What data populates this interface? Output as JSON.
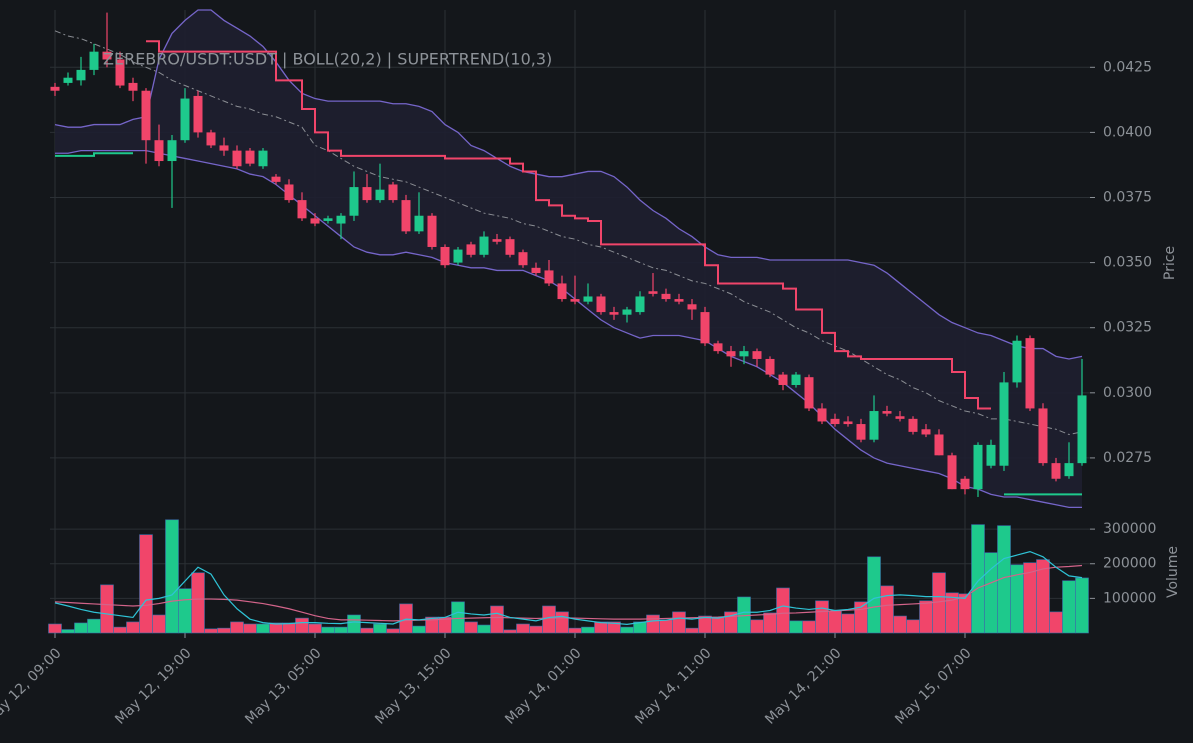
{
  "chart_data": {
    "type": "candlestick",
    "title": "ZEREBRO/USDT:USDT | BOLL(20,2) | SUPERTREND(10,3)",
    "ylabel": "Price",
    "up_color": "#1ec98c",
    "down_color": "#f1456a",
    "grid": true,
    "categories": [
      "May 12, 09:00",
      null,
      null,
      null,
      null,
      null,
      null,
      null,
      null,
      null,
      "May 12, 19:00",
      null,
      null,
      null,
      null,
      null,
      null,
      null,
      null,
      null,
      "May 13, 05:00",
      null,
      null,
      null,
      null,
      null,
      null,
      null,
      null,
      null,
      "May 13, 15:00",
      null,
      null,
      null,
      null,
      null,
      null,
      null,
      null,
      null,
      "May 14, 01:00",
      null,
      null,
      null,
      null,
      null,
      null,
      null,
      null,
      null,
      "May 14, 11:00",
      null,
      null,
      null,
      null,
      null,
      null,
      null,
      null,
      null,
      "May 14, 21:00",
      null,
      null,
      null,
      null,
      null,
      null,
      null,
      null,
      null,
      "May 15, 07:00",
      null,
      null,
      null,
      null,
      null,
      null,
      null,
      null,
      null
    ],
    "open": [
      0.04175,
      0.0419,
      0.042,
      0.0424,
      0.0431,
      0.0428,
      0.0419,
      0.0416,
      0.0397,
      0.0389,
      0.0397,
      0.0414,
      0.04,
      0.0395,
      0.0393,
      0.0393,
      0.0387,
      0.0383,
      0.038,
      0.0374,
      0.0367,
      0.0366,
      0.0365,
      0.0368,
      0.0379,
      0.0374,
      0.038,
      0.0374,
      0.0362,
      0.0368,
      0.0356,
      0.035,
      0.0357,
      0.0353,
      0.0359,
      0.0359,
      0.0354,
      0.0348,
      0.0347,
      0.0342,
      0.0336,
      0.0335,
      0.0337,
      0.0331,
      0.033,
      0.0331,
      0.0339,
      0.0338,
      0.0336,
      0.0334,
      0.0331,
      0.0319,
      0.0316,
      0.0314,
      0.0316,
      0.0313,
      0.0307,
      0.0303,
      0.0306,
      0.0294,
      0.029,
      0.0289,
      0.0288,
      0.0282,
      0.0293,
      0.0291,
      0.029,
      0.0286,
      0.0284,
      0.0276,
      0.0267,
      0.0263,
      0.0272,
      0.0272,
      0.0304,
      0.0321,
      0.0294,
      0.0273,
      0.0268,
      0.0273
    ],
    "high": [
      0.0419,
      0.0423,
      0.0429,
      0.0434,
      0.0446,
      0.0431,
      0.0421,
      0.0417,
      0.0403,
      0.0399,
      0.0417,
      0.0416,
      0.0401,
      0.0398,
      0.0395,
      0.0394,
      0.0394,
      0.0384,
      0.0382,
      0.0377,
      0.0369,
      0.0368,
      0.0369,
      0.0385,
      0.0384,
      0.0388,
      0.0381,
      0.0376,
      0.0377,
      0.0369,
      0.0357,
      0.0356,
      0.0358,
      0.0362,
      0.0361,
      0.036,
      0.0355,
      0.035,
      0.0351,
      0.0345,
      0.0345,
      0.0342,
      0.0338,
      0.0333,
      0.0333,
      0.0339,
      0.0346,
      0.034,
      0.0338,
      0.0336,
      0.0333,
      0.032,
      0.0318,
      0.0318,
      0.0317,
      0.0314,
      0.0308,
      0.0308,
      0.0307,
      0.0296,
      0.0292,
      0.0291,
      0.029,
      0.0299,
      0.0295,
      0.0293,
      0.0291,
      0.0288,
      0.0286,
      0.0277,
      0.0268,
      0.0281,
      0.0282,
      0.0308,
      0.0322,
      0.0322,
      0.0296,
      0.0275,
      0.0281,
      0.0313
    ],
    "low": [
      0.0414,
      0.0418,
      0.0418,
      0.0422,
      0.0425,
      0.0417,
      0.0412,
      0.0388,
      0.0387,
      0.0371,
      0.0396,
      0.0398,
      0.0394,
      0.0391,
      0.0386,
      0.0387,
      0.0386,
      0.038,
      0.0373,
      0.0366,
      0.0364,
      0.0365,
      0.0359,
      0.0366,
      0.0373,
      0.0373,
      0.0373,
      0.0361,
      0.0361,
      0.0355,
      0.0348,
      0.0349,
      0.0352,
      0.0352,
      0.0357,
      0.0352,
      0.0348,
      0.0345,
      0.0341,
      0.0335,
      0.0334,
      0.0334,
      0.033,
      0.0328,
      0.0327,
      0.033,
      0.0337,
      0.0335,
      0.0334,
      0.0328,
      0.0318,
      0.0315,
      0.031,
      0.0311,
      0.031,
      0.0306,
      0.0301,
      0.0302,
      0.0293,
      0.0288,
      0.0287,
      0.0287,
      0.0281,
      0.0281,
      0.0291,
      0.0289,
      0.0284,
      0.0283,
      0.0276,
      0.0263,
      0.0261,
      0.026,
      0.0271,
      0.027,
      0.0302,
      0.0293,
      0.0272,
      0.0266,
      0.0267,
      0.0272
    ],
    "close": [
      0.0416,
      0.0421,
      0.0424,
      0.0431,
      0.0428,
      0.0418,
      0.0416,
      0.0397,
      0.0389,
      0.0397,
      0.0413,
      0.04,
      0.0395,
      0.0393,
      0.0387,
      0.0388,
      0.0393,
      0.0381,
      0.0374,
      0.0367,
      0.0365,
      0.0367,
      0.0368,
      0.0379,
      0.0374,
      0.0378,
      0.0374,
      0.0362,
      0.0368,
      0.0356,
      0.0349,
      0.0355,
      0.0353,
      0.036,
      0.0358,
      0.0353,
      0.0349,
      0.0346,
      0.0342,
      0.0336,
      0.0335,
      0.0337,
      0.0331,
      0.033,
      0.0332,
      0.0337,
      0.0338,
      0.0336,
      0.0335,
      0.0332,
      0.0319,
      0.0316,
      0.0314,
      0.0316,
      0.0313,
      0.0307,
      0.0303,
      0.0307,
      0.0294,
      0.0289,
      0.0288,
      0.0288,
      0.0282,
      0.0293,
      0.0292,
      0.029,
      0.0285,
      0.0284,
      0.0276,
      0.0263,
      0.0263,
      0.028,
      0.028,
      0.0304,
      0.032,
      0.0294,
      0.0273,
      0.0267,
      0.0273,
      0.0299
    ],
    "ylim": [
      0.0255,
      0.0447
    ],
    "yticks": [
      0.0275,
      {
        "value": 0.03,
        "label": "0.0300"
      },
      0.0325,
      {
        "value": 0.035,
        "label": "0.0350"
      },
      0.0375,
      {
        "value": 0.04,
        "label": "0.0400"
      },
      0.0425
    ],
    "bollinger": {
      "color": "#7565c9",
      "mid_color": "#8a8d93",
      "upper": [
        0.0403,
        0.0402,
        0.0402,
        0.0403,
        0.0403,
        0.0403,
        0.0405,
        0.0406,
        0.0428,
        0.0438,
        0.0443,
        0.0447,
        0.0447,
        0.0443,
        0.044,
        0.0437,
        0.0433,
        0.0427,
        0.042,
        0.0415,
        0.0413,
        0.0412,
        0.0412,
        0.0412,
        0.0412,
        0.0412,
        0.0411,
        0.0411,
        0.041,
        0.0408,
        0.0403,
        0.04,
        0.0395,
        0.0393,
        0.039,
        0.0387,
        0.0385,
        0.0384,
        0.0383,
        0.0383,
        0.0384,
        0.0385,
        0.0385,
        0.0383,
        0.0379,
        0.0374,
        0.037,
        0.0367,
        0.0363,
        0.036,
        0.0356,
        0.0353,
        0.0352,
        0.0352,
        0.0352,
        0.0351,
        0.0351,
        0.0351,
        0.0351,
        0.0351,
        0.0351,
        0.0351,
        0.035,
        0.0349,
        0.0346,
        0.0342,
        0.0338,
        0.0334,
        0.033,
        0.0327,
        0.0325,
        0.0323,
        0.0322,
        0.032,
        0.0318,
        0.0317,
        0.0317,
        0.0314,
        0.0313,
        0.0314
      ],
      "middle": [
        0.0439,
        0.0437,
        0.0436,
        0.0434,
        0.0432,
        0.043,
        0.0427,
        0.0425,
        0.0423,
        0.042,
        0.0418,
        0.0416,
        0.0414,
        0.0412,
        0.041,
        0.0409,
        0.0407,
        0.0406,
        0.0404,
        0.0402,
        0.0395,
        0.0393,
        0.039,
        0.0387,
        0.0385,
        0.0383,
        0.0382,
        0.0381,
        0.0379,
        0.0377,
        0.0375,
        0.0373,
        0.0371,
        0.0369,
        0.0368,
        0.0367,
        0.0365,
        0.0364,
        0.0362,
        0.036,
        0.0359,
        0.0357,
        0.0356,
        0.0354,
        0.0352,
        0.035,
        0.0348,
        0.0347,
        0.0345,
        0.0343,
        0.0342,
        0.034,
        0.0338,
        0.0335,
        0.0333,
        0.0331,
        0.0328,
        0.0325,
        0.0323,
        0.032,
        0.0318,
        0.0316,
        0.0313,
        0.031,
        0.0307,
        0.0305,
        0.0302,
        0.03,
        0.0297,
        0.0295,
        0.0293,
        0.0292,
        0.029,
        0.029,
        0.0289,
        0.0288,
        0.0287,
        0.0286,
        0.0284,
        0.0285
      ],
      "lower": [
        0.0392,
        0.0392,
        0.0393,
        0.0393,
        0.0393,
        0.0393,
        0.0393,
        0.0393,
        0.0392,
        0.0391,
        0.039,
        0.0389,
        0.0388,
        0.0387,
        0.0386,
        0.0384,
        0.0383,
        0.038,
        0.0376,
        0.0372,
        0.0368,
        0.0364,
        0.036,
        0.0356,
        0.0354,
        0.0353,
        0.0353,
        0.0354,
        0.0353,
        0.0352,
        0.035,
        0.0349,
        0.0348,
        0.0348,
        0.0347,
        0.0347,
        0.0347,
        0.0345,
        0.0343,
        0.034,
        0.0336,
        0.0332,
        0.0328,
        0.0325,
        0.0323,
        0.0321,
        0.0322,
        0.0322,
        0.0322,
        0.0321,
        0.032,
        0.0317,
        0.0314,
        0.0312,
        0.031,
        0.0307,
        0.0304,
        0.03,
        0.0296,
        0.0291,
        0.0286,
        0.0282,
        0.0278,
        0.0275,
        0.0273,
        0.0272,
        0.0271,
        0.027,
        0.0269,
        0.0267,
        0.0264,
        0.0263,
        0.0261,
        0.026,
        0.026,
        0.0259,
        0.0258,
        0.0257,
        0.0256,
        0.0256
      ]
    },
    "supertrend": {
      "up_color": "#1ec98c",
      "down_color": "#f1456a",
      "up": [
        0.0391,
        0.0391,
        0.0391,
        0.0392,
        0.0392,
        0.0392,
        0.0392,
        null,
        null,
        null,
        null,
        null,
        null,
        null,
        null,
        null,
        null,
        null,
        null,
        null,
        null,
        null,
        null,
        null,
        null,
        null,
        null,
        null,
        null,
        null,
        null,
        null,
        null,
        null,
        null,
        null,
        null,
        null,
        null,
        null,
        null,
        null,
        null,
        null,
        null,
        null,
        null,
        null,
        null,
        null,
        null,
        null,
        null,
        null,
        null,
        null,
        null,
        null,
        null,
        null,
        null,
        null,
        null,
        null,
        null,
        null,
        null,
        null,
        null,
        null,
        null,
        null,
        null,
        0.0261,
        0.0261,
        0.0261,
        0.0261,
        0.0261,
        0.0261,
        0.0261
      ],
      "down": [
        null,
        null,
        null,
        null,
        null,
        null,
        null,
        0.0435,
        0.0431,
        0.0431,
        0.0431,
        0.0431,
        0.0431,
        0.0431,
        0.0431,
        0.0431,
        0.0431,
        0.042,
        0.042,
        0.0409,
        0.04,
        0.0393,
        0.0391,
        0.0391,
        0.0391,
        0.0391,
        0.0391,
        0.0391,
        0.0391,
        0.0391,
        0.039,
        0.039,
        0.039,
        0.039,
        0.039,
        0.0388,
        0.0385,
        0.0374,
        0.0372,
        0.0368,
        0.0367,
        0.0366,
        0.0357,
        0.0357,
        0.0357,
        0.0357,
        0.0357,
        0.0357,
        0.0357,
        0.0357,
        0.0349,
        0.0342,
        0.0342,
        0.0342,
        0.0342,
        0.0342,
        0.034,
        0.0332,
        0.0332,
        0.0323,
        0.0316,
        0.0314,
        0.0313,
        0.0313,
        0.0313,
        0.0313,
        0.0313,
        0.0313,
        0.0313,
        0.0308,
        0.0298,
        0.0294,
        0.0294,
        null,
        null,
        null,
        null,
        null,
        null,
        null
      ]
    },
    "volume": {
      "ylabel": "Volume",
      "ylim": [
        0,
        335000
      ],
      "yticks": [
        100000,
        200000,
        300000
      ],
      "values": [
        26000,
        10000,
        29000,
        40000,
        139000,
        17000,
        32000,
        284000,
        52000,
        327000,
        128000,
        174000,
        12000,
        14000,
        32000,
        26000,
        26000,
        29000,
        29000,
        43000,
        26000,
        17000,
        17000,
        52000,
        14000,
        26000,
        12000,
        84000,
        20000,
        46000,
        46000,
        90000,
        32000,
        23000,
        78000,
        9000,
        26000,
        20000,
        78000,
        61000,
        14000,
        17000,
        32000,
        32000,
        17000,
        32000,
        52000,
        38000,
        61000,
        14000,
        49000,
        46000,
        61000,
        104000,
        38000,
        58000,
        130000,
        35000,
        35000,
        93000,
        64000,
        55000,
        90000,
        220000,
        136000,
        49000,
        38000,
        93000,
        174000,
        116000,
        113000,
        313000,
        232000,
        310000,
        197000,
        203000,
        212000,
        61000,
        151000,
        159000
      ],
      "fast_color": "#2fc3d6",
      "slow_color": "#d3648a",
      "ma_fast": [
        87000,
        78000,
        68000,
        60000,
        55000,
        50000,
        45000,
        95000,
        100000,
        110000,
        150000,
        190000,
        170000,
        110000,
        70000,
        40000,
        30000,
        26000,
        27000,
        30000,
        30000,
        28000,
        27000,
        32000,
        30000,
        28000,
        26000,
        40000,
        38000,
        42000,
        45000,
        60000,
        55000,
        52000,
        57000,
        45000,
        40000,
        35000,
        45000,
        48000,
        40000,
        35000,
        30000,
        28000,
        25000,
        30000,
        35000,
        37000,
        43000,
        40000,
        45000,
        43000,
        50000,
        60000,
        60000,
        65000,
        78000,
        72000,
        68000,
        72000,
        65000,
        68000,
        75000,
        100000,
        108000,
        110000,
        108000,
        105000,
        105000,
        103000,
        100000,
        150000,
        185000,
        215000,
        225000,
        235000,
        220000,
        190000,
        165000,
        160000
      ],
      "ma_slow": [
        90000,
        88000,
        86000,
        84000,
        82000,
        80000,
        78000,
        80000,
        85000,
        92000,
        96000,
        98000,
        98000,
        97000,
        95000,
        90000,
        85000,
        78000,
        70000,
        60000,
        50000,
        42000,
        38000,
        38000,
        37000,
        36000,
        35000,
        36000,
        37000,
        38000,
        40000,
        42000,
        43000,
        44000,
        45000,
        44000,
        43000,
        42000,
        43000,
        44000,
        43000,
        42000,
        41000,
        40000,
        40000,
        40000,
        41000,
        42000,
        43000,
        44000,
        45000,
        46000,
        48000,
        50000,
        52000,
        54000,
        57000,
        58000,
        60000,
        62000,
        64000,
        66000,
        68000,
        75000,
        80000,
        82000,
        84000,
        86000,
        90000,
        95000,
        105000,
        130000,
        145000,
        160000,
        168000,
        175000,
        185000,
        190000,
        192000,
        195000
      ]
    }
  }
}
